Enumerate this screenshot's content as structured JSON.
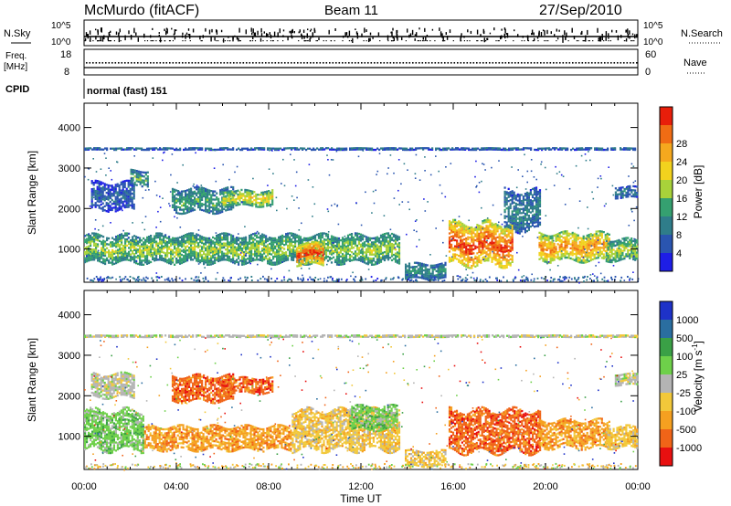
{
  "header": {
    "station": "McMurdo (fitACF)",
    "beam": "Beam 11",
    "date": "27/Sep/2010"
  },
  "top_panels": {
    "nsky_label": "N.Sky",
    "nsearch_label": "N.Search",
    "nsky_ticks": [
      "10^5",
      "10^0"
    ],
    "nsearch_ticks": [
      "10^5",
      "10^0"
    ],
    "freq_label_1": "Freq.",
    "freq_label_2": "[MHz]",
    "freq_ticks": [
      "18",
      "8"
    ],
    "nave_label": "Nave",
    "nave_ticks": [
      "60",
      "0"
    ],
    "cpid_label": "CPID",
    "cpid_text": "normal (fast) 151"
  },
  "colors": {
    "power": [
      "#1e1ee6",
      "#2a55b0",
      "#2f7d8a",
      "#35a070",
      "#a8d23a",
      "#f2d21e",
      "#f5a81e",
      "#f06c14",
      "#e81e0a"
    ],
    "velocity": [
      "#e81010",
      "#f06418",
      "#f5a020",
      "#f2c83a",
      "#b4b4b4",
      "#6ed04a",
      "#3aa046",
      "#2a6ea0",
      "#1e32c8"
    ]
  },
  "chart_data": [
    {
      "type": "heatmap",
      "name": "power",
      "xlabel": "",
      "ylabel": "Slant Range [km]",
      "xlim": [
        0,
        24
      ],
      "ylim": [
        180,
        4600
      ],
      "yticks": [
        "1000",
        "2000",
        "3000",
        "4000"
      ],
      "colorbar_label": "Power [dB]",
      "colorbar_ticks": [
        "4",
        "8",
        "12",
        "16",
        "20",
        "24",
        "28"
      ],
      "colorbar_range": [
        0,
        32
      ],
      "bands": [
        {
          "t0": 0.0,
          "t1": 13.7,
          "r": [
            700,
            1400
          ],
          "level": 15
        },
        {
          "t0": 0.3,
          "t1": 2.2,
          "r": [
            2000,
            2700
          ],
          "level": 6
        },
        {
          "t0": 2.0,
          "t1": 2.8,
          "r": [
            2600,
            3000
          ],
          "level": 12
        },
        {
          "t0": 3.8,
          "t1": 6.5,
          "r": [
            1950,
            2550
          ],
          "level": 12
        },
        {
          "t0": 6.0,
          "t1": 8.2,
          "r": [
            2100,
            2500
          ],
          "level": 18
        },
        {
          "t0": 9.2,
          "t1": 10.4,
          "r": [
            650,
            1200
          ],
          "level": 27
        },
        {
          "t0": 13.9,
          "t1": 15.7,
          "r": [
            300,
            700
          ],
          "level": 10
        },
        {
          "t0": 15.8,
          "t1": 18.6,
          "r": [
            650,
            1700
          ],
          "level": 27
        },
        {
          "t0": 18.2,
          "t1": 19.8,
          "r": [
            1500,
            2500
          ],
          "level": 9
        },
        {
          "t0": 19.7,
          "t1": 22.8,
          "r": [
            750,
            1450
          ],
          "level": 23
        },
        {
          "t0": 22.6,
          "t1": 24.0,
          "r": [
            750,
            1300
          ],
          "level": 16
        },
        {
          "t0": 23.0,
          "t1": 24.0,
          "r": [
            2300,
            2600
          ],
          "level": 8
        },
        {
          "t0": 0.0,
          "t1": 24.0,
          "r": [
            3480,
            3540
          ],
          "level": 7
        }
      ]
    },
    {
      "type": "heatmap",
      "name": "velocity",
      "xlabel": "Time UT",
      "ylabel": "Slant Range [km]",
      "xlim": [
        0,
        24
      ],
      "ylim": [
        180,
        4600
      ],
      "xticks": [
        "00:00",
        "04:00",
        "08:00",
        "12:00",
        "16:00",
        "20:00",
        "00:00"
      ],
      "yticks": [
        "1000",
        "2000",
        "3000",
        "4000"
      ],
      "colorbar_label": "Velocity [m s^-1]",
      "colorbar_ticks": [
        "-1000",
        "-500",
        "-100",
        "-25",
        "25",
        "100",
        "500",
        "1000"
      ],
      "colorbar_range": [
        -1250,
        1250
      ],
      "bands": [
        {
          "t0": 0.0,
          "t1": 2.6,
          "r": [
            700,
            1700
          ],
          "level": 5
        },
        {
          "t0": 2.6,
          "t1": 9.0,
          "r": [
            700,
            1300
          ],
          "level": 2
        },
        {
          "t0": 0.3,
          "t1": 2.2,
          "r": [
            2000,
            2600
          ],
          "level": 4
        },
        {
          "t0": 3.8,
          "t1": 6.5,
          "r": [
            1900,
            2550
          ],
          "level": 1
        },
        {
          "t0": 6.0,
          "t1": 8.2,
          "r": [
            2100,
            2500
          ],
          "level": 1
        },
        {
          "t0": 9.0,
          "t1": 13.7,
          "r": [
            700,
            1700
          ],
          "level": 3
        },
        {
          "t0": 11.5,
          "t1": 13.6,
          "r": [
            1200,
            1800
          ],
          "level": 5
        },
        {
          "t0": 13.9,
          "t1": 15.7,
          "r": [
            300,
            700
          ],
          "level": 3
        },
        {
          "t0": 15.8,
          "t1": 19.8,
          "r": [
            650,
            1700
          ],
          "level": 1
        },
        {
          "t0": 19.7,
          "t1": 22.8,
          "r": [
            750,
            1450
          ],
          "level": 2
        },
        {
          "t0": 22.6,
          "t1": 24.0,
          "r": [
            750,
            1300
          ],
          "level": 3
        },
        {
          "t0": 23.0,
          "t1": 24.0,
          "r": [
            2300,
            2600
          ],
          "level": 4
        },
        {
          "t0": 0.0,
          "t1": 24.0,
          "r": [
            3480,
            3540
          ],
          "level": 4
        }
      ]
    }
  ]
}
